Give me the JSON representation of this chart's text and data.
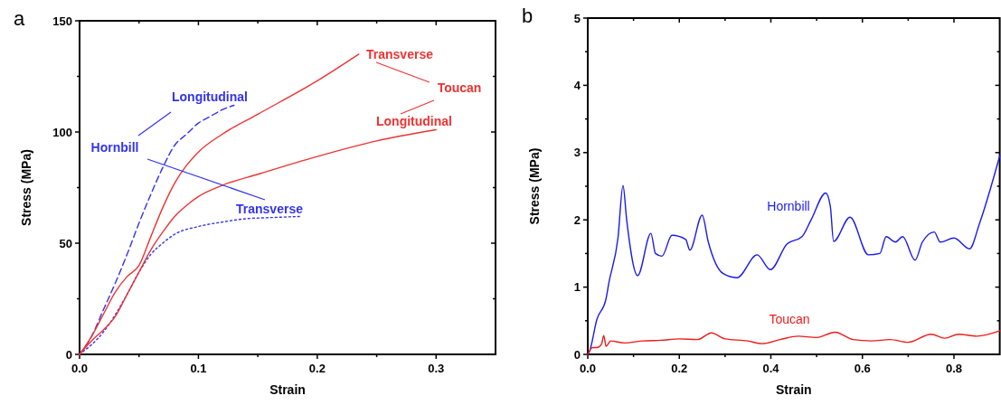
{
  "chart_data": [
    {
      "type": "line",
      "xlabel": "Strain",
      "ylabel": "Stress (MPa)",
      "xlim": [
        0,
        0.35
      ],
      "ylim": [
        0,
        150
      ],
      "xticks": [
        {
          "value": 0,
          "label": "0.0"
        },
        {
          "value": 0.05,
          "label": null
        },
        0.1,
        {
          "value": 0.15,
          "label": null
        },
        0.2,
        {
          "value": 0.25,
          "label": null
        },
        0.3
      ],
      "yticks": [
        0,
        {
          "value": 25,
          "label": null
        },
        50,
        {
          "value": 75,
          "label": null
        },
        100,
        {
          "value": 125,
          "label": null
        },
        150
      ],
      "series": [
        {
          "name": "Longitudinal",
          "color": "#3333ee",
          "line_style": "dashed",
          "x": [
            0,
            0.01,
            0.02,
            0.03,
            0.04,
            0.05,
            0.06,
            0.07,
            0.08,
            0.09,
            0.1,
            0.11,
            0.12,
            0.13
          ],
          "values": [
            0,
            8,
            20,
            32,
            45,
            59,
            72,
            84,
            94,
            99,
            104,
            107,
            110,
            112
          ]
        },
        {
          "name": "Transverse",
          "color": "#3333ee",
          "line_style": "dotted",
          "x": [
            0,
            0.02,
            0.04,
            0.05,
            0.06,
            0.07,
            0.08,
            0.1,
            0.12,
            0.14,
            0.16,
            0.185
          ],
          "values": [
            0,
            10,
            27,
            37,
            45,
            50,
            54,
            57.5,
            59.5,
            61,
            61.5,
            62
          ]
        },
        {
          "name": "Transverse",
          "color": "#ee3333",
          "line_style": "solid",
          "x": [
            0,
            0.01,
            0.02,
            0.03,
            0.04,
            0.05,
            0.06,
            0.07,
            0.08,
            0.09,
            0.1,
            0.12,
            0.15,
            0.2,
            0.235
          ],
          "values": [
            0,
            8,
            18,
            28,
            35,
            40,
            53,
            66,
            77,
            85,
            91,
            99,
            108,
            123,
            135
          ]
        },
        {
          "name": "Longitudinal",
          "color": "#ee3333",
          "line_style": "solid",
          "x": [
            0,
            0.01,
            0.02,
            0.03,
            0.04,
            0.05,
            0.06,
            0.07,
            0.08,
            0.09,
            0.1,
            0.12,
            0.15,
            0.2,
            0.25,
            0.3
          ],
          "values": [
            0,
            6,
            11,
            17,
            27,
            37,
            47,
            55,
            62,
            67,
            71,
            76,
            81,
            89,
            96,
            101
          ]
        }
      ],
      "annotations": [
        "a",
        "Hornbill",
        "Toucan"
      ]
    },
    {
      "type": "line",
      "xlabel": "Strain",
      "ylabel": "Stress (MPa)",
      "xlim": [
        0,
        0.9
      ],
      "ylim": [
        0,
        5
      ],
      "xticks": [
        {
          "value": 0,
          "label": "0.0"
        },
        {
          "value": 0.1,
          "label": null
        },
        0.2,
        {
          "value": 0.3,
          "label": null
        },
        0.4,
        {
          "value": 0.5,
          "label": null
        },
        0.6,
        {
          "value": 0.7,
          "label": null
        },
        0.8
      ],
      "yticks": [
        0,
        {
          "value": 0.5,
          "label": null
        },
        1,
        {
          "value": 1.5,
          "label": null
        },
        2,
        {
          "value": 2.5,
          "label": null
        },
        3,
        {
          "value": 3.5,
          "label": null
        },
        4,
        {
          "value": 4.5,
          "label": null
        },
        5
      ],
      "series": [
        {
          "name": "Hornbill",
          "color": "#1a1aee",
          "line_style": "solid",
          "x": [
            0,
            0.003,
            0.02,
            0.04,
            0.046,
            0.066,
            0.077,
            0.085,
            0.109,
            0.138,
            0.148,
            0.162,
            0.184,
            0.214,
            0.223,
            0.25,
            0.263,
            0.296,
            0.326,
            0.37,
            0.399,
            0.435,
            0.468,
            0.488,
            0.52,
            0.53,
            0.537,
            0.573,
            0.613,
            0.638,
            0.652,
            0.672,
            0.688,
            0.715,
            0.731,
            0.757,
            0.77,
            0.8,
            0.834,
            0.856,
            0.9
          ],
          "values": [
            0,
            0.03,
            0.52,
            0.83,
            1.06,
            1.73,
            2.51,
            2.0,
            1.17,
            1.8,
            1.5,
            1.46,
            1.77,
            1.71,
            1.55,
            2.07,
            1.68,
            1.2,
            1.14,
            1.48,
            1.26,
            1.64,
            1.75,
            2.0,
            2.4,
            2.2,
            1.68,
            2.04,
            1.48,
            1.5,
            1.75,
            1.67,
            1.75,
            1.4,
            1.67,
            1.82,
            1.67,
            1.73,
            1.57,
            1.95,
            2.95
          ]
        },
        {
          "name": "Toucan",
          "color": "#ee1a1a",
          "line_style": "solid",
          "x": [
            0,
            0.01,
            0.02,
            0.03,
            0.035,
            0.04,
            0.05,
            0.08,
            0.12,
            0.16,
            0.2,
            0.24,
            0.27,
            0.3,
            0.35,
            0.38,
            0.42,
            0.46,
            0.5,
            0.54,
            0.58,
            0.62,
            0.66,
            0.7,
            0.75,
            0.78,
            0.81,
            0.85,
            0.9
          ],
          "values": [
            0,
            0.1,
            0.1,
            0.15,
            0.28,
            0.12,
            0.2,
            0.17,
            0.2,
            0.21,
            0.23,
            0.22,
            0.32,
            0.23,
            0.2,
            0.16,
            0.22,
            0.27,
            0.25,
            0.33,
            0.22,
            0.2,
            0.22,
            0.18,
            0.3,
            0.24,
            0.3,
            0.27,
            0.35
          ]
        }
      ],
      "annotations": [
        "b"
      ]
    }
  ]
}
